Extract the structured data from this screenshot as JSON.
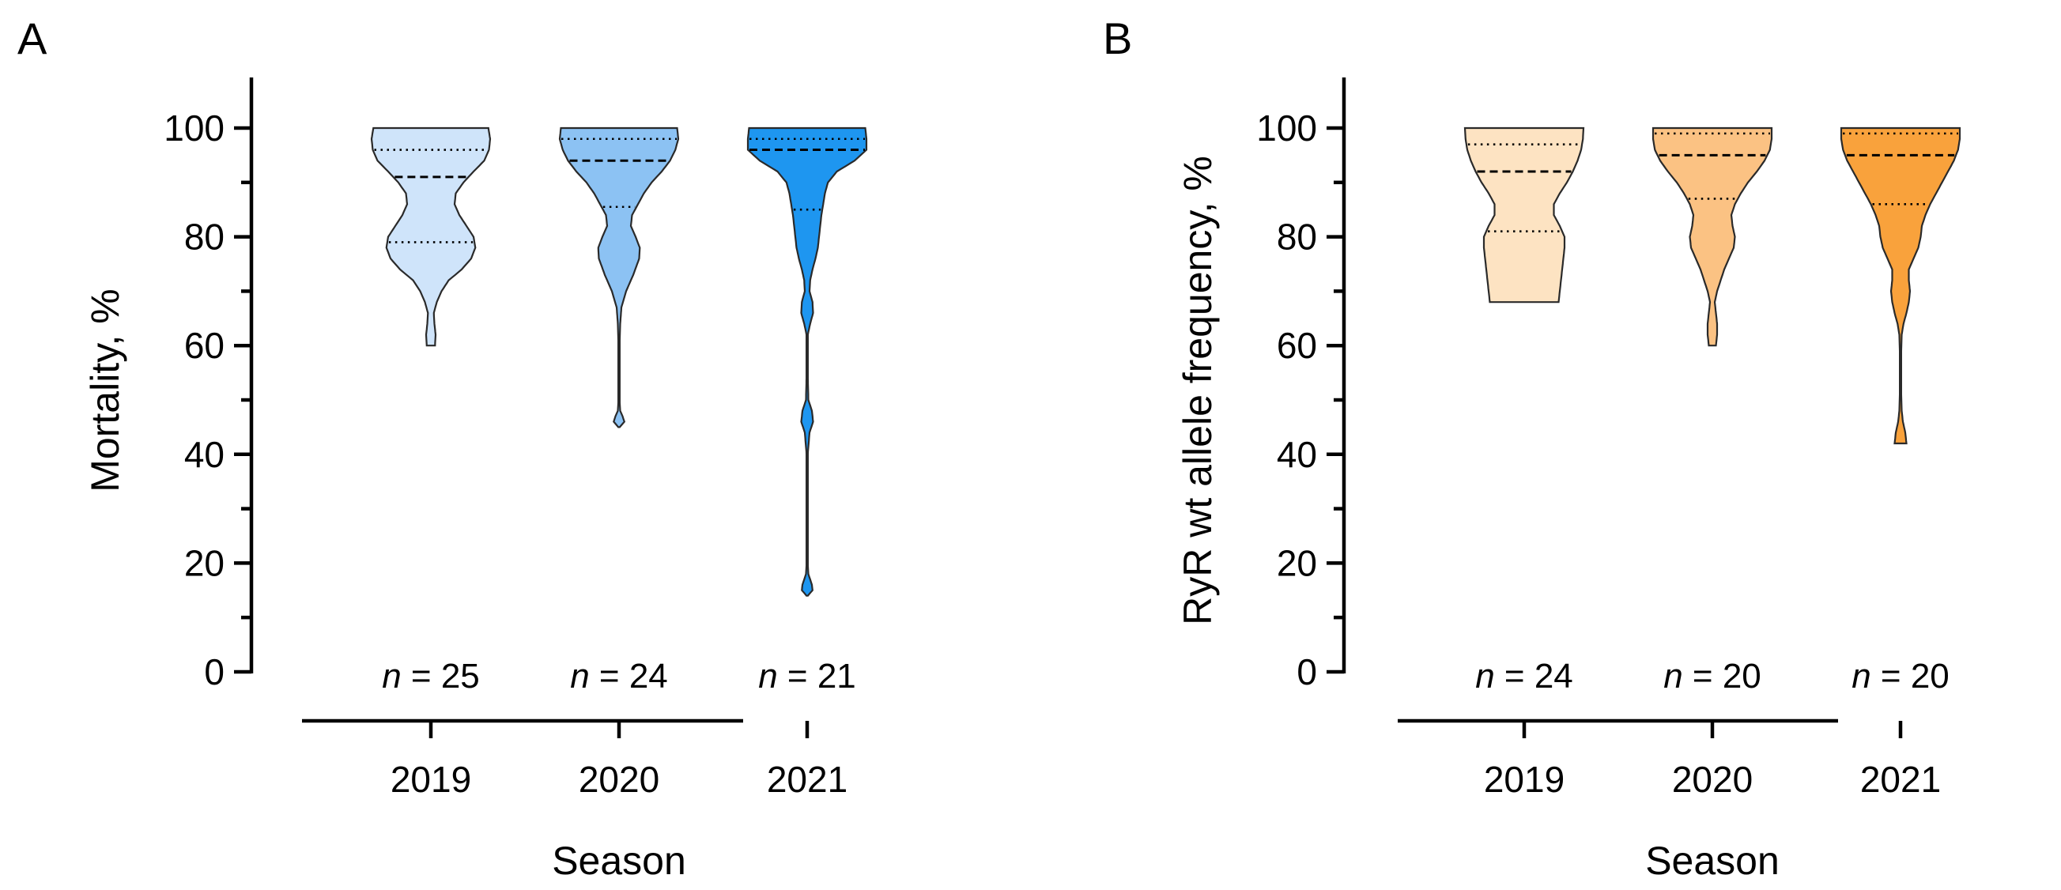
{
  "chart_data": [
    {
      "panel": "A",
      "type": "violin",
      "ylabel": "Mortality, %",
      "xlabel": "Season",
      "ylim": [
        0,
        100
      ],
      "yticks": [
        0,
        20,
        40,
        60,
        80,
        100
      ],
      "categories": [
        "2019",
        "2020",
        "2021"
      ],
      "colors": [
        "#cfe4fa",
        "#8cc2f3",
        "#1e96f0"
      ],
      "n_labels": [
        {
          "prefix": "n",
          "rest": " = 25"
        },
        {
          "prefix": "n",
          "rest": " = 24"
        },
        {
          "prefix": "n",
          "rest": " = 21"
        }
      ],
      "series": [
        {
          "category": "2019",
          "min": 60,
          "max": 100,
          "median": 91,
          "q1": 79,
          "q3": 96,
          "density": [
            [
              60,
              0.07
            ],
            [
              62,
              0.08
            ],
            [
              64,
              0.06
            ],
            [
              66,
              0.05
            ],
            [
              68,
              0.1
            ],
            [
              70,
              0.18
            ],
            [
              72,
              0.3
            ],
            [
              74,
              0.52
            ],
            [
              76,
              0.68
            ],
            [
              78,
              0.75
            ],
            [
              80,
              0.72
            ],
            [
              82,
              0.6
            ],
            [
              84,
              0.48
            ],
            [
              86,
              0.4
            ],
            [
              88,
              0.42
            ],
            [
              90,
              0.55
            ],
            [
              92,
              0.72
            ],
            [
              94,
              0.9
            ],
            [
              96,
              0.98
            ],
            [
              98,
              1.0
            ],
            [
              100,
              0.97
            ]
          ]
        },
        {
          "category": "2020",
          "min": 45,
          "max": 100,
          "median": 94,
          "q1": 85.5,
          "q3": 98,
          "density": [
            [
              45,
              0.01
            ],
            [
              46,
              0.09
            ],
            [
              47,
              0.06
            ],
            [
              48,
              0.02
            ],
            [
              50,
              0.01
            ],
            [
              55,
              0.01
            ],
            [
              60,
              0.01
            ],
            [
              64,
              0.02
            ],
            [
              67,
              0.04
            ],
            [
              70,
              0.12
            ],
            [
              73,
              0.24
            ],
            [
              76,
              0.34
            ],
            [
              78,
              0.35
            ],
            [
              80,
              0.28
            ],
            [
              82,
              0.2
            ],
            [
              84,
              0.22
            ],
            [
              86,
              0.32
            ],
            [
              88,
              0.42
            ],
            [
              90,
              0.55
            ],
            [
              92,
              0.72
            ],
            [
              94,
              0.86
            ],
            [
              96,
              0.95
            ],
            [
              98,
              1.0
            ],
            [
              100,
              0.98
            ]
          ]
        },
        {
          "category": "2021",
          "min": 14,
          "max": 100,
          "median": 96,
          "q1": 85,
          "q3": 98,
          "density": [
            [
              14,
              0.01
            ],
            [
              15,
              0.09
            ],
            [
              16,
              0.08
            ],
            [
              18,
              0.02
            ],
            [
              20,
              0.01
            ],
            [
              40,
              0.01
            ],
            [
              44,
              0.04
            ],
            [
              46,
              0.1
            ],
            [
              48,
              0.08
            ],
            [
              50,
              0.02
            ],
            [
              55,
              0.01
            ],
            [
              62,
              0.01
            ],
            [
              64,
              0.05
            ],
            [
              66,
              0.1
            ],
            [
              68,
              0.09
            ],
            [
              70,
              0.04
            ],
            [
              72,
              0.05
            ],
            [
              74,
              0.09
            ],
            [
              76,
              0.14
            ],
            [
              78,
              0.18
            ],
            [
              80,
              0.2
            ],
            [
              82,
              0.22
            ],
            [
              84,
              0.24
            ],
            [
              86,
              0.27
            ],
            [
              88,
              0.3
            ],
            [
              90,
              0.35
            ],
            [
              92,
              0.5
            ],
            [
              94,
              0.8
            ],
            [
              96,
              1.0
            ],
            [
              98,
              1.0
            ],
            [
              100,
              0.98
            ]
          ]
        }
      ]
    },
    {
      "panel": "B",
      "type": "violin",
      "ylabel": "RyR wt allele frequency, %",
      "xlabel": "Season",
      "ylim": [
        0,
        100
      ],
      "yticks": [
        0,
        20,
        40,
        60,
        80,
        100
      ],
      "categories": [
        "2019",
        "2020",
        "2021"
      ],
      "colors": [
        "#fde3c2",
        "#fbc283",
        "#f9a23c"
      ],
      "n_labels": [
        {
          "prefix": "n",
          "rest": " = 24"
        },
        {
          "prefix": "n",
          "rest": " = 20"
        },
        {
          "prefix": "n",
          "rest": " = 20"
        }
      ],
      "series": [
        {
          "category": "2019",
          "min": 68,
          "max": 100,
          "median": 92,
          "q1": 81,
          "q3": 97,
          "density": [
            [
              68,
              0.58
            ],
            [
              70,
              0.6
            ],
            [
              72,
              0.62
            ],
            [
              74,
              0.64
            ],
            [
              76,
              0.66
            ],
            [
              78,
              0.68
            ],
            [
              80,
              0.68
            ],
            [
              82,
              0.6
            ],
            [
              84,
              0.5
            ],
            [
              86,
              0.5
            ],
            [
              88,
              0.6
            ],
            [
              90,
              0.72
            ],
            [
              92,
              0.82
            ],
            [
              94,
              0.9
            ],
            [
              96,
              0.96
            ],
            [
              98,
              0.99
            ],
            [
              100,
              1.0
            ]
          ]
        },
        {
          "category": "2020",
          "min": 60,
          "max": 100,
          "median": 95,
          "q1": 87,
          "q3": 99,
          "density": [
            [
              60,
              0.06
            ],
            [
              62,
              0.08
            ],
            [
              64,
              0.08
            ],
            [
              66,
              0.06
            ],
            [
              68,
              0.04
            ],
            [
              70,
              0.08
            ],
            [
              72,
              0.14
            ],
            [
              74,
              0.2
            ],
            [
              76,
              0.28
            ],
            [
              78,
              0.36
            ],
            [
              80,
              0.38
            ],
            [
              82,
              0.34
            ],
            [
              84,
              0.32
            ],
            [
              86,
              0.38
            ],
            [
              88,
              0.48
            ],
            [
              90,
              0.6
            ],
            [
              92,
              0.75
            ],
            [
              94,
              0.88
            ],
            [
              96,
              0.97
            ],
            [
              98,
              1.0
            ],
            [
              100,
              1.0
            ]
          ]
        },
        {
          "category": "2021",
          "min": 42,
          "max": 100,
          "median": 95,
          "q1": 86,
          "q3": 99,
          "density": [
            [
              42,
              0.1
            ],
            [
              44,
              0.08
            ],
            [
              46,
              0.04
            ],
            [
              48,
              0.02
            ],
            [
              52,
              0.01
            ],
            [
              58,
              0.01
            ],
            [
              62,
              0.02
            ],
            [
              64,
              0.05
            ],
            [
              66,
              0.1
            ],
            [
              68,
              0.14
            ],
            [
              70,
              0.16
            ],
            [
              72,
              0.14
            ],
            [
              74,
              0.14
            ],
            [
              76,
              0.22
            ],
            [
              78,
              0.3
            ],
            [
              80,
              0.34
            ],
            [
              82,
              0.36
            ],
            [
              84,
              0.42
            ],
            [
              86,
              0.5
            ],
            [
              88,
              0.6
            ],
            [
              90,
              0.7
            ],
            [
              92,
              0.8
            ],
            [
              94,
              0.9
            ],
            [
              96,
              0.97
            ],
            [
              98,
              1.0
            ],
            [
              100,
              1.0
            ]
          ]
        }
      ]
    }
  ]
}
